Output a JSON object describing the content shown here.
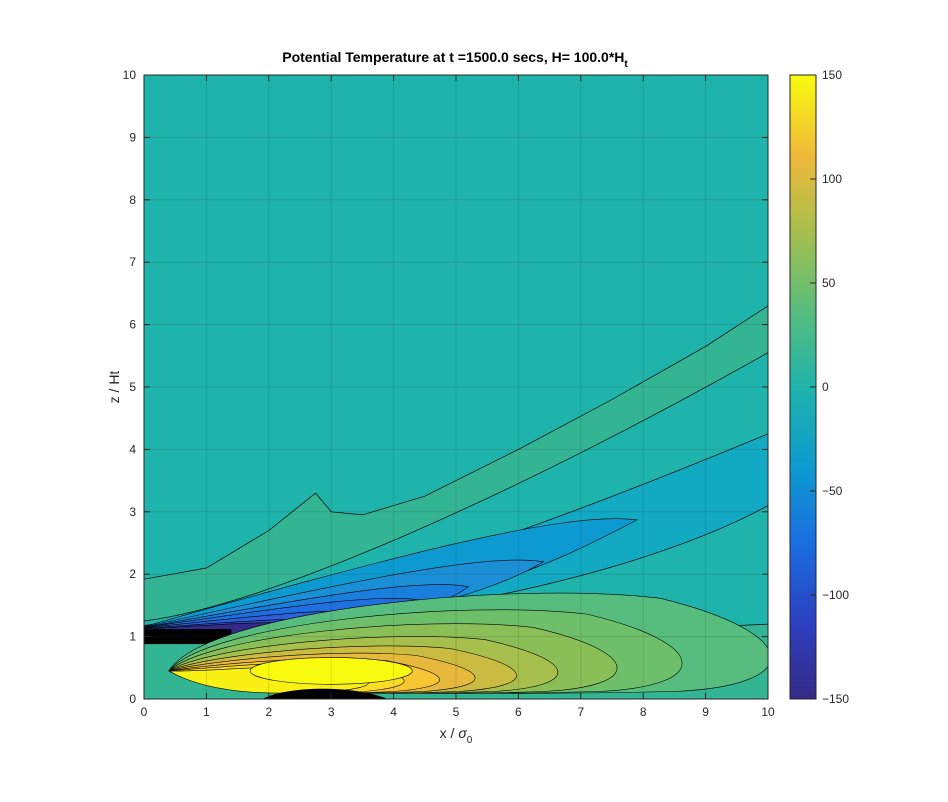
{
  "chart_data": {
    "type": "contour",
    "title": {
      "main": "Potential Temperature at t =1500.0 secs, H= 100.0*H",
      "subscript": "t"
    },
    "xlabel": {
      "main": "x / ",
      "symbol": "σ",
      "subscript": "0"
    },
    "ylabel": "z / Ht",
    "xlim": [
      0,
      10
    ],
    "ylim": [
      0,
      10
    ],
    "x_ticks": [
      0,
      1,
      2,
      3,
      4,
      5,
      6,
      7,
      8,
      9,
      10
    ],
    "y_ticks": [
      0,
      1,
      2,
      3,
      4,
      5,
      6,
      7,
      8,
      9,
      10
    ],
    "x_tick_labels": [
      "0",
      "1",
      "2",
      "3",
      "4",
      "5",
      "6",
      "7",
      "8",
      "9",
      "10"
    ],
    "y_tick_labels": [
      "0",
      "1",
      "2",
      "3",
      "4",
      "5",
      "6",
      "7",
      "8",
      "9",
      "10"
    ],
    "grid": true,
    "colormap": "parula",
    "colorbar": {
      "range": [
        -150,
        150
      ],
      "ticks": [
        150,
        100,
        50,
        0,
        -50,
        -100,
        -150
      ],
      "tick_labels": [
        "150",
        "100",
        "50",
        "0",
        "−50",
        "−100",
        "−150"
      ]
    },
    "regions": [
      {
        "name": "background",
        "value": 0,
        "color": "#1fb4ab"
      },
      {
        "name": "plume-low-band",
        "value": 10,
        "color": "#33b594",
        "boundary_x": [
          0,
          1,
          2,
          2.75,
          3,
          3.5,
          4.5,
          6,
          7.5,
          9,
          10
        ],
        "boundary_z": [
          1.92,
          2.1,
          2.7,
          3.3,
          3.0,
          2.95,
          3.25,
          4.0,
          4.8,
          5.65,
          6.3
        ]
      },
      {
        "name": "plume-negative-core",
        "value": -90,
        "color": "#2467d6",
        "center": [
          2.2,
          1.2
        ]
      },
      {
        "name": "plume-positive-core",
        "value": 150,
        "color": "#f9f114",
        "center": [
          3.0,
          0.45
        ]
      }
    ]
  }
}
